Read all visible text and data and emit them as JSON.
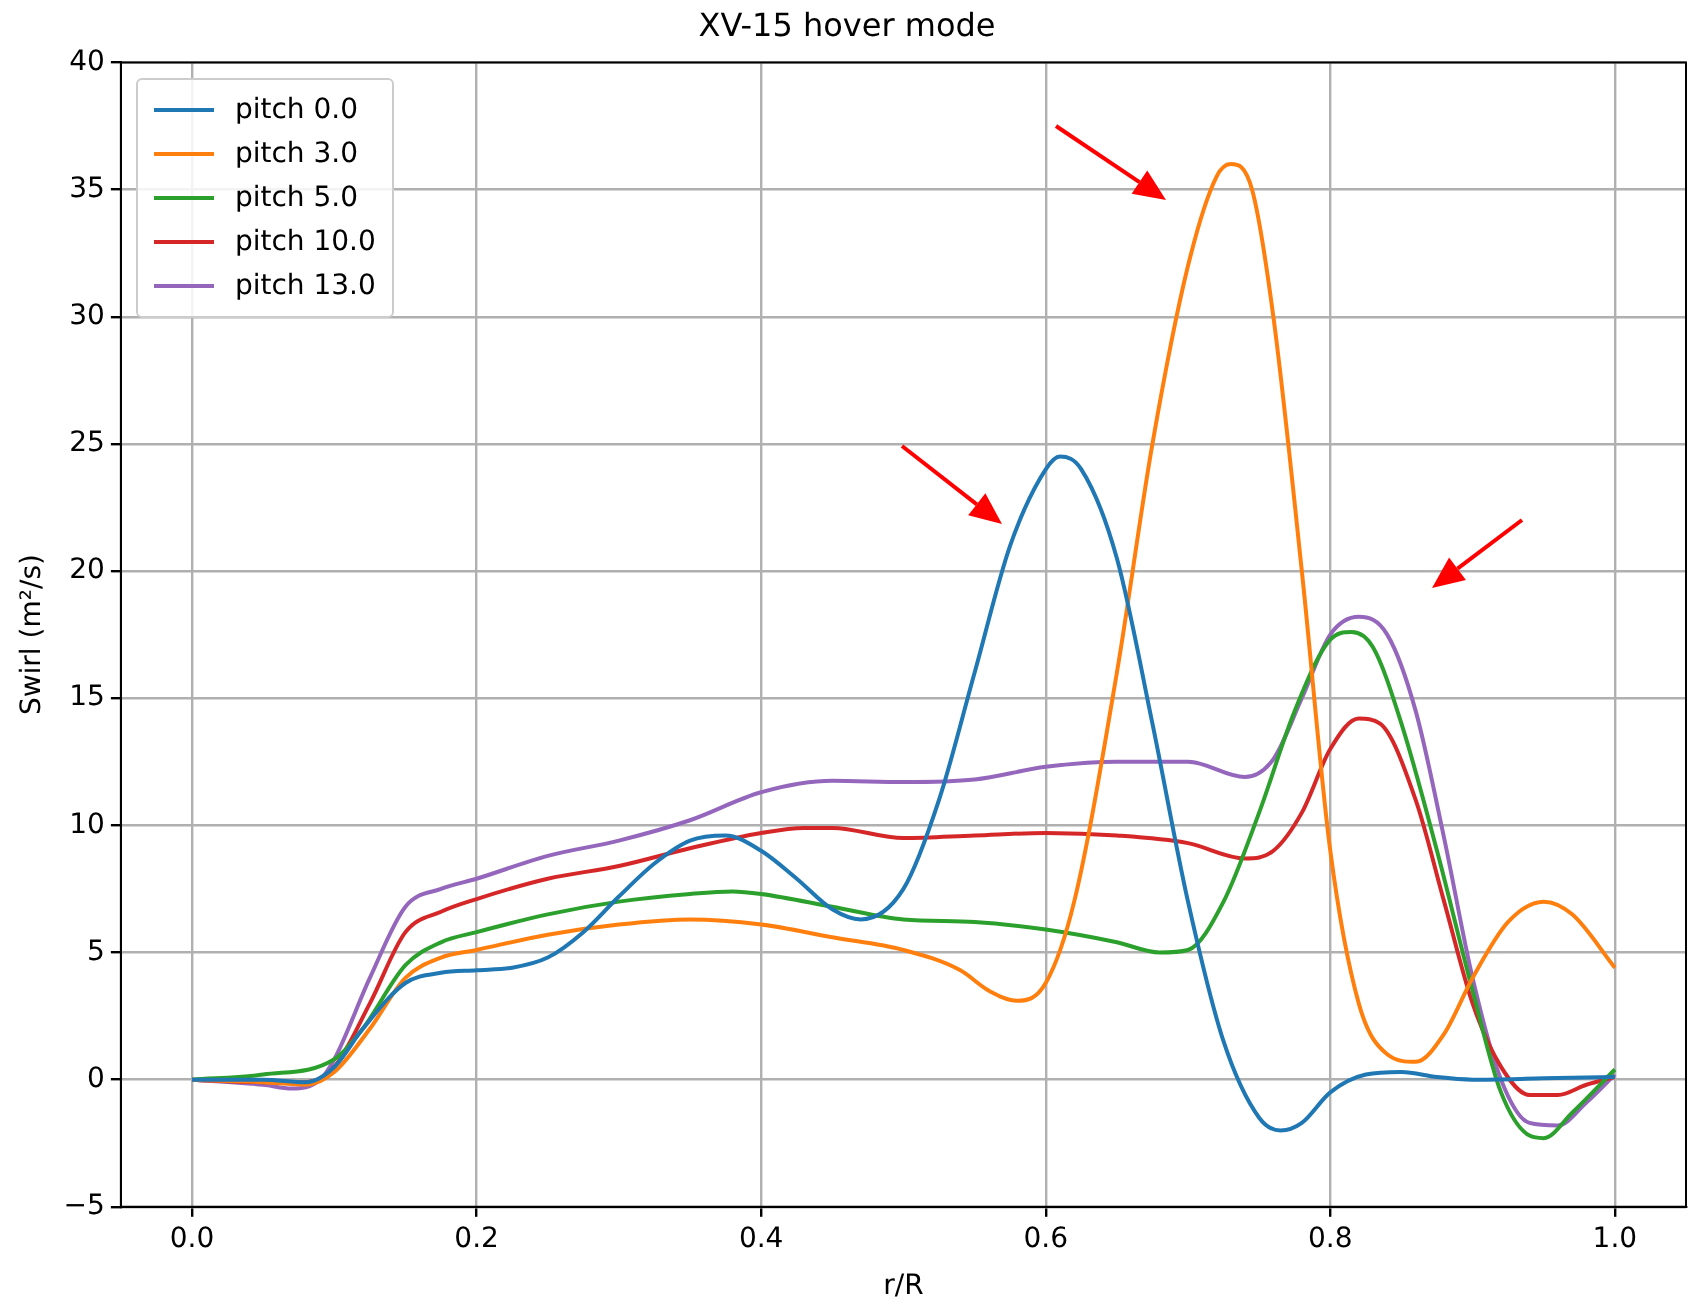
{
  "chart_data": {
    "type": "line",
    "title": "XV-15 hover mode",
    "xlabel": "r/R",
    "ylabel": "Swirl (m²/s)",
    "xlim": [
      -0.05,
      1.05
    ],
    "xticks": [
      {
        "value": 0,
        "label": "0.0"
      },
      {
        "value": 0.2,
        "label": "0.2"
      },
      {
        "value": 0.4,
        "label": "0.4"
      },
      {
        "value": 0.6,
        "label": "0.6"
      },
      {
        "value": 0.8,
        "label": "0.8"
      },
      {
        "value": 1,
        "label": "1.0"
      }
    ],
    "ylim": [
      -5,
      40
    ],
    "yticks": [
      {
        "value": -5,
        "label": "−5"
      },
      0,
      5,
      10,
      15,
      20,
      25,
      30,
      35,
      40
    ],
    "grid": true,
    "legend": "top left",
    "marker": "none",
    "line_style": "solid",
    "series": [
      {
        "name": "pitch 0.0",
        "color": "#1f77b4",
        "x": [
          0,
          0.05,
          0.08,
          0.1,
          0.12,
          0.15,
          0.175,
          0.2,
          0.225,
          0.25,
          0.275,
          0.3,
          0.325,
          0.35,
          0.375,
          0.4,
          0.425,
          0.45,
          0.47,
          0.5,
          0.525,
          0.55,
          0.575,
          0.6,
          0.61,
          0.625,
          0.65,
          0.675,
          0.7,
          0.725,
          0.75,
          0.765,
          0.78,
          0.8,
          0.825,
          0.85,
          0.875,
          0.9,
          0.95,
          1.0
        ],
        "values": [
          0,
          0,
          -0.1,
          0.5,
          2,
          3.8,
          4.2,
          4.3,
          4.4,
          4.8,
          5.8,
          7.2,
          8.5,
          9.4,
          9.6,
          9,
          7.9,
          6.7,
          6.3,
          7.5,
          11,
          16,
          21,
          24,
          24.5,
          24,
          20.5,
          14,
          7,
          1.5,
          -1.5,
          -2,
          -1.7,
          -0.5,
          0.2,
          0.3,
          0.1,
          0,
          0.05,
          0.1
        ]
      },
      {
        "name": "pitch 3.0",
        "color": "#ff7f0e",
        "x": [
          0,
          0.05,
          0.08,
          0.1,
          0.125,
          0.15,
          0.175,
          0.2,
          0.25,
          0.3,
          0.35,
          0.4,
          0.45,
          0.5,
          0.54,
          0.56,
          0.58,
          0.6,
          0.62,
          0.65,
          0.675,
          0.7,
          0.72,
          0.73,
          0.745,
          0.76,
          0.78,
          0.8,
          0.82,
          0.84,
          0.86,
          0.88,
          0.9,
          0.925,
          0.95,
          0.97,
          1.0
        ],
        "values": [
          0,
          -0.1,
          -0.2,
          0.3,
          2,
          4,
          4.8,
          5.1,
          5.7,
          6.1,
          6.3,
          6.1,
          5.6,
          5.1,
          4.3,
          3.5,
          3.1,
          3.8,
          7,
          16,
          25,
          32,
          35.5,
          36,
          35,
          30,
          20,
          9,
          3,
          1,
          0.7,
          1.8,
          4,
          6.2,
          7,
          6.5,
          4.4
        ]
      },
      {
        "name": "pitch 5.0",
        "color": "#2ca02c",
        "x": [
          0,
          0.05,
          0.1,
          0.12,
          0.15,
          0.175,
          0.2,
          0.25,
          0.3,
          0.35,
          0.38,
          0.4,
          0.45,
          0.5,
          0.55,
          0.6,
          0.65,
          0.68,
          0.7,
          0.725,
          0.75,
          0.775,
          0.8,
          0.815,
          0.83,
          0.85,
          0.875,
          0.9,
          0.92,
          0.94,
          0.95,
          0.97,
          1.0
        ],
        "values": [
          0,
          0.2,
          0.8,
          2,
          4.5,
          5.4,
          5.8,
          6.5,
          7,
          7.3,
          7.4,
          7.3,
          6.8,
          6.3,
          6.2,
          5.9,
          5.4,
          5,
          5.1,
          7,
          10.5,
          14.5,
          17.3,
          17.6,
          17,
          14,
          9,
          3.5,
          -0.5,
          -2.2,
          -2.3,
          -1.3,
          0.4
        ]
      },
      {
        "name": "pitch 10.0",
        "color": "#d62728",
        "x": [
          0,
          0.05,
          0.08,
          0.1,
          0.125,
          0.15,
          0.175,
          0.2,
          0.25,
          0.3,
          0.35,
          0.4,
          0.43,
          0.45,
          0.5,
          0.55,
          0.6,
          0.65,
          0.7,
          0.74,
          0.76,
          0.78,
          0.8,
          0.82,
          0.835,
          0.86,
          0.88,
          0.9,
          0.92,
          0.94,
          0.96,
          0.98,
          1.0
        ],
        "values": [
          0,
          -0.1,
          -0.1,
          0.5,
          3,
          5.8,
          6.6,
          7.1,
          7.9,
          8.4,
          9.1,
          9.7,
          9.9,
          9.9,
          9.5,
          9.6,
          9.7,
          9.6,
          9.3,
          8.7,
          9,
          10.5,
          13,
          14.2,
          14,
          11,
          7,
          3,
          0.5,
          -0.6,
          -0.6,
          -0.2,
          0.1
        ]
      },
      {
        "name": "pitch 13.0",
        "color": "#9467bd",
        "x": [
          0,
          0.05,
          0.07,
          0.09,
          0.1,
          0.125,
          0.15,
          0.175,
          0.2,
          0.25,
          0.3,
          0.35,
          0.4,
          0.45,
          0.5,
          0.55,
          0.6,
          0.65,
          0.7,
          0.74,
          0.76,
          0.78,
          0.8,
          0.82,
          0.84,
          0.86,
          0.88,
          0.9,
          0.92,
          0.94,
          0.96,
          0.98,
          1.0
        ],
        "values": [
          0,
          -0.2,
          -0.35,
          0,
          0.8,
          4,
          6.8,
          7.5,
          7.9,
          8.8,
          9.4,
          10.2,
          11.3,
          11.75,
          11.7,
          11.8,
          12.3,
          12.5,
          12.5,
          11.9,
          12.6,
          15,
          17.5,
          18.2,
          17.5,
          14.5,
          9.5,
          4,
          0,
          -1.7,
          -1.8,
          -0.9,
          0.2
        ]
      }
    ]
  }
}
